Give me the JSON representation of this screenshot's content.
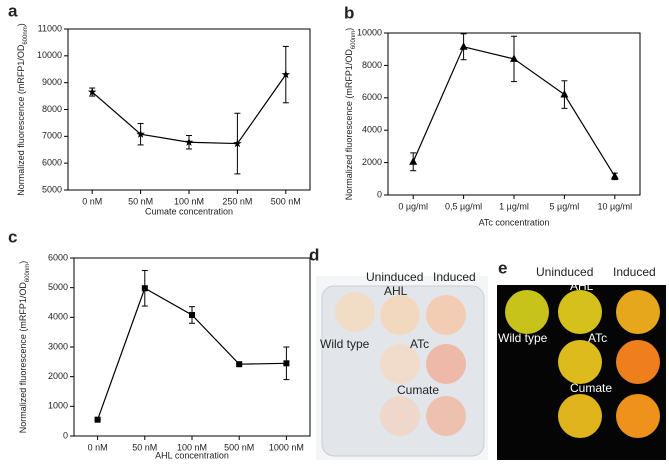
{
  "chart_data": [
    {
      "type": "line",
      "panel": "a",
      "marker": "star",
      "color": "#000000",
      "categories": [
        "0 nM",
        "50 nM",
        "100 nM",
        "250 nM",
        "500 nM"
      ],
      "values": [
        8650,
        7080,
        6780,
        6730,
        9300
      ],
      "errors": [
        150,
        400,
        250,
        1130,
        1050
      ],
      "xlabel": "Cumate concentration",
      "ylabel": {
        "main": "Normalized fluorescence (mRFP1/OD",
        "sub": "600nm",
        "end": ")"
      },
      "ylim": [
        5000,
        11000
      ],
      "yticks": [
        5000,
        6000,
        7000,
        8000,
        9000,
        10000,
        11000
      ]
    },
    {
      "type": "line",
      "panel": "b",
      "marker": "triangle",
      "color": "#000000",
      "categories": [
        "0 µg/ml",
        "0,5 µg/ml",
        "1 µg/ml",
        "5 µg/ml",
        "10 µg/ml"
      ],
      "values": [
        2050,
        9150,
        8400,
        6200,
        1150
      ],
      "errors": [
        550,
        800,
        1400,
        850,
        200
      ],
      "xlabel": "ATc concentration",
      "ylabel": {
        "main": "Normalized fluorescence (mRFP1/OD",
        "sub": "600nm",
        "end": ")"
      },
      "ylim": [
        0,
        10000
      ],
      "yticks": [
        0,
        2000,
        4000,
        6000,
        8000,
        10000
      ]
    },
    {
      "type": "line",
      "panel": "c",
      "marker": "square",
      "color": "#000000",
      "categories": [
        "0 nM",
        "50 nM",
        "100 nM",
        "500 nM",
        "1000 nM"
      ],
      "values": [
        550,
        4980,
        4080,
        2420,
        2450
      ],
      "errors": [
        0,
        600,
        280,
        0,
        550
      ],
      "xlabel": "AHL concentration",
      "ylabel": {
        "main": "Normalized fluorescence (mRFP1/OD",
        "sub": "600nm",
        "end": ")"
      },
      "ylim": [
        0,
        6000
      ],
      "yticks": [
        0,
        1000,
        2000,
        3000,
        4000,
        5000,
        6000
      ]
    }
  ],
  "photos": [
    {
      "panel": "d",
      "labels": {
        "uninduced": "Uninduced",
        "induced": "Induced",
        "ahl": "AHL",
        "wild_type": "Wild type",
        "atc": "ATc",
        "cumate": "Cumate"
      }
    },
    {
      "panel": "e",
      "labels": {
        "uninduced": "Uninduced",
        "induced": "Induced",
        "ahl": "AHL",
        "wild_type": "Wild type",
        "atc": "ATc",
        "cumate": "Cumate"
      }
    }
  ]
}
